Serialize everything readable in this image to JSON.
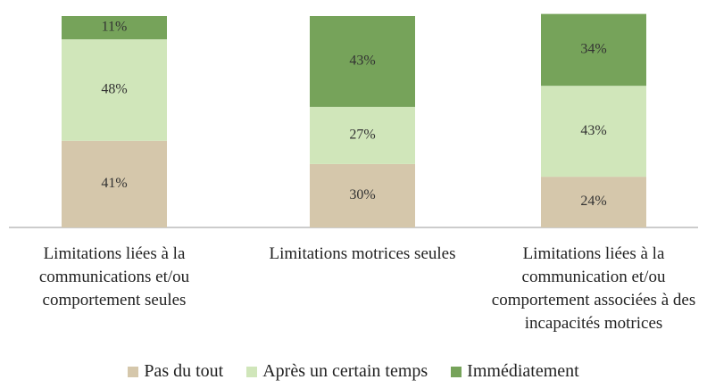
{
  "chart_data": {
    "type": "stacked_bar",
    "categories": [
      "Limitations liées à la communications et/ou comportement seules",
      "Limitations motrices seules",
      "Limitations liées à la communication et/ou comportement associées à des incapacités motrices"
    ],
    "series": [
      {
        "name": "Pas du tout",
        "color": "#d5c7ab",
        "values": [
          41,
          30,
          24
        ],
        "value_labels": [
          "41%",
          "30%",
          "24%"
        ]
      },
      {
        "name": "Après un certain temps",
        "color": "#d0e6ba",
        "values": [
          48,
          27,
          43
        ],
        "value_labels": [
          "48%",
          "27%",
          "43%"
        ]
      },
      {
        "name": "Immédiatement",
        "color": "#76a35a",
        "values": [
          11,
          43,
          34
        ],
        "value_labels": [
          "11%",
          "43%",
          "34%"
        ]
      }
    ],
    "ylim": [
      0,
      100
    ]
  }
}
